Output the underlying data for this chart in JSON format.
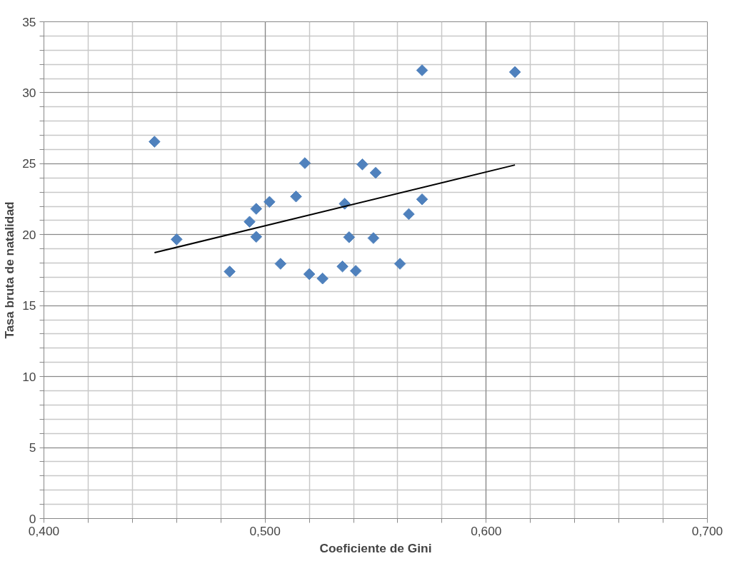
{
  "chart_data": {
    "type": "scatter",
    "xlabel": "Coeficiente de Gini",
    "ylabel": "Tasa bruta de natalidad",
    "marker": "diamond",
    "grid": true,
    "xlim": [
      0.4,
      0.7
    ],
    "ylim": [
      0,
      35
    ],
    "xticks": [
      {
        "value": 0.4,
        "label": "0,400"
      },
      {
        "value": 0.42,
        "label": null
      },
      {
        "value": 0.44,
        "label": null
      },
      {
        "value": 0.46,
        "label": null
      },
      {
        "value": 0.48,
        "label": null
      },
      {
        "value": 0.5,
        "label": "0,500"
      },
      {
        "value": 0.52,
        "label": null
      },
      {
        "value": 0.54,
        "label": null
      },
      {
        "value": 0.56,
        "label": null
      },
      {
        "value": 0.58,
        "label": null
      },
      {
        "value": 0.6,
        "label": "0,600"
      },
      {
        "value": 0.62,
        "label": null
      },
      {
        "value": 0.64,
        "label": null
      },
      {
        "value": 0.66,
        "label": null
      },
      {
        "value": 0.68,
        "label": null
      },
      {
        "value": 0.7,
        "label": "0,700"
      }
    ],
    "yticks": [
      0,
      {
        "value": 1,
        "label": null
      },
      {
        "value": 2,
        "label": null
      },
      {
        "value": 3,
        "label": null
      },
      {
        "value": 4,
        "label": null
      },
      5,
      {
        "value": 6,
        "label": null
      },
      {
        "value": 7,
        "label": null
      },
      {
        "value": 8,
        "label": null
      },
      {
        "value": 9,
        "label": null
      },
      10,
      {
        "value": 11,
        "label": null
      },
      {
        "value": 12,
        "label": null
      },
      {
        "value": 13,
        "label": null
      },
      {
        "value": 14,
        "label": null
      },
      15,
      {
        "value": 16,
        "label": null
      },
      {
        "value": 17,
        "label": null
      },
      {
        "value": 18,
        "label": null
      },
      {
        "value": 19,
        "label": null
      },
      20,
      {
        "value": 21,
        "label": null
      },
      {
        "value": 22,
        "label": null
      },
      {
        "value": 23,
        "label": null
      },
      {
        "value": 24,
        "label": null
      },
      25,
      {
        "value": 26,
        "label": null
      },
      {
        "value": 27,
        "label": null
      },
      {
        "value": 28,
        "label": null
      },
      {
        "value": 29,
        "label": null
      },
      30,
      {
        "value": 31,
        "label": null
      },
      {
        "value": 32,
        "label": null
      },
      {
        "value": 33,
        "label": null
      },
      {
        "value": 34,
        "label": null
      },
      35
    ],
    "series": [
      {
        "color": "#4f81bd",
        "x": [
          0.45,
          0.46,
          0.484,
          0.493,
          0.496,
          0.496,
          0.502,
          0.507,
          0.514,
          0.518,
          0.52,
          0.526,
          0.535,
          0.536,
          0.538,
          0.541,
          0.544,
          0.549,
          0.55,
          0.561,
          0.565,
          0.571,
          0.571,
          0.613
        ],
        "values": [
          26.55,
          19.67,
          17.4,
          20.91,
          21.82,
          19.85,
          22.31,
          17.95,
          22.69,
          25.04,
          17.22,
          16.91,
          17.76,
          22.18,
          19.82,
          17.45,
          24.95,
          19.76,
          24.36,
          17.95,
          21.45,
          22.49,
          31.58,
          31.46
        ]
      },
      {
        "type": "line",
        "color": "#000000",
        "marker": "none",
        "x": [
          0.45,
          0.613
        ],
        "values": [
          18.73,
          24.91
        ]
      }
    ]
  }
}
